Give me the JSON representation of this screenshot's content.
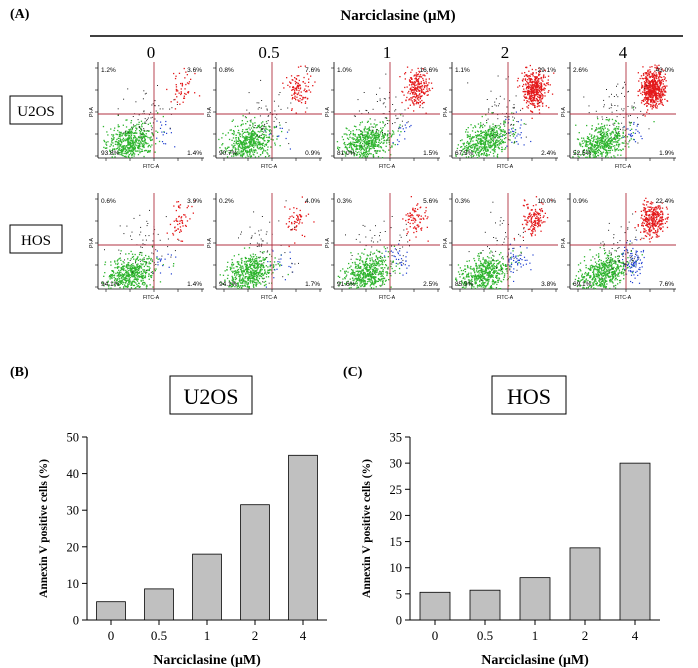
{
  "panel_a": {
    "label": "(A)",
    "header": "Narciclasine (μM)",
    "concentrations": [
      "0",
      "0.5",
      "1",
      "2",
      "4"
    ],
    "cell_lines": [
      "U2OS",
      "HOS"
    ],
    "axis_x_label": "FITC-A",
    "axis_y_label": "PI-A",
    "quadrants": [
      [
        {
          "ul": "1.2%",
          "ur": "3.6%",
          "ll": "93.8%",
          "lr": "1.4%"
        },
        {
          "ul": "0.8%",
          "ur": "7.6%",
          "ll": "90.7%",
          "lr": "0.9%"
        },
        {
          "ul": "1.0%",
          "ur": "16.6%",
          "ll": "81.0%",
          "lr": "1.5%"
        },
        {
          "ul": "1.1%",
          "ur": "29.1%",
          "ll": "67.5%",
          "lr": "2.4%"
        },
        {
          "ul": "2.6%",
          "ur": "43.0%",
          "ll": "52.5%",
          "lr": "1.9%"
        }
      ],
      [
        {
          "ul": "0.6%",
          "ur": "3.9%",
          "ll": "94.1%",
          "lr": "1.4%"
        },
        {
          "ul": "0.2%",
          "ur": "4.0%",
          "ll": "94.1%",
          "lr": "1.7%"
        },
        {
          "ul": "0.3%",
          "ur": "5.6%",
          "ll": "91.6%",
          "lr": "2.5%"
        },
        {
          "ul": "0.3%",
          "ur": "10.0%",
          "ll": "85.9%",
          "lr": "3.8%"
        },
        {
          "ul": "0.9%",
          "ur": "22.4%",
          "ll": "69.1%",
          "lr": "7.6%"
        }
      ]
    ]
  },
  "chart_data": [
    {
      "type": "bar",
      "panel_label": "(B)",
      "title": "U2OS",
      "categories": [
        "0",
        "0.5",
        "1",
        "2",
        "4"
      ],
      "values": [
        5.0,
        8.5,
        18.0,
        31.5,
        45.0
      ],
      "xlabel": "Narciclasine (μM)",
      "ylabel": "Annexin V positive cells (%)",
      "ylim": [
        0,
        50
      ],
      "yticks": [
        "0",
        "10",
        "20",
        "30",
        "40",
        "50"
      ],
      "color": "#c0c0c0"
    },
    {
      "type": "bar",
      "panel_label": "(C)",
      "title": "HOS",
      "categories": [
        "0",
        "0.5",
        "1",
        "2",
        "4"
      ],
      "values": [
        5.3,
        5.7,
        8.1,
        13.8,
        30.0
      ],
      "xlabel": "Narciclasine (μM)",
      "ylabel": "Annexin V positive cells (%)",
      "ylim": [
        0,
        35
      ],
      "yticks": [
        "0",
        "5",
        "10",
        "15",
        "20",
        "25",
        "30",
        "35"
      ],
      "color": "#c0c0c0"
    }
  ]
}
